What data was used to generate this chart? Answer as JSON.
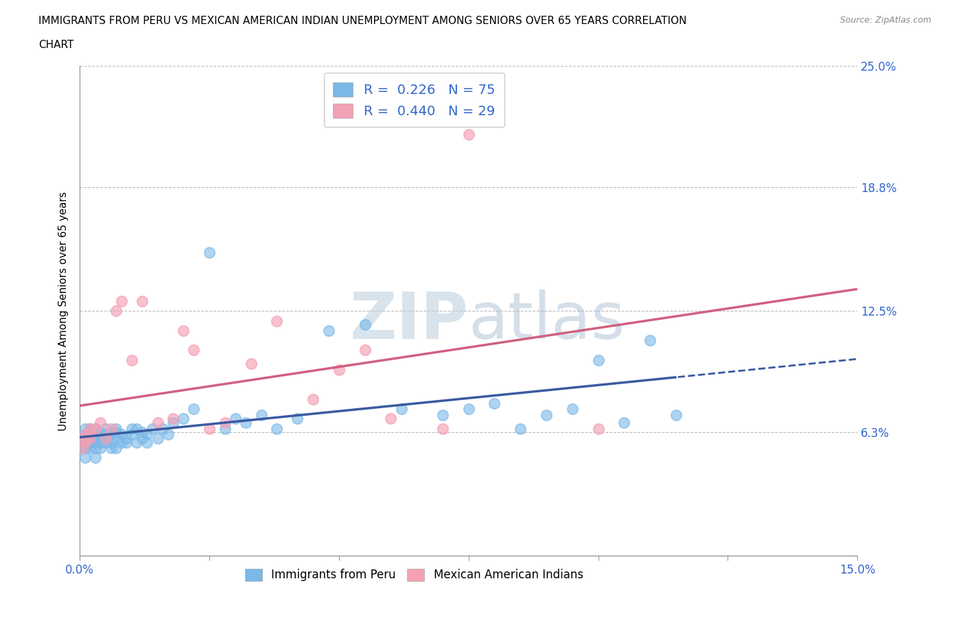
{
  "title_line1": "IMMIGRANTS FROM PERU VS MEXICAN AMERICAN INDIAN UNEMPLOYMENT AMONG SENIORS OVER 65 YEARS CORRELATION",
  "title_line2": "CHART",
  "source": "Source: ZipAtlas.com",
  "ylabel": "Unemployment Among Seniors over 65 years",
  "xlim": [
    0.0,
    0.15
  ],
  "ylim": [
    0.0,
    0.25
  ],
  "ytick_vals": [
    0.0,
    0.063,
    0.125,
    0.188,
    0.25
  ],
  "ytick_labels": [
    "",
    "6.3%",
    "12.5%",
    "18.8%",
    "25.0%"
  ],
  "hline_vals": [
    0.063,
    0.125,
    0.188,
    0.25
  ],
  "blue_color": "#7ab8e8",
  "pink_color": "#f4a0b5",
  "blue_line_color": "#3a5ba0",
  "pink_line_color": "#d06080",
  "label_color": "#3366cc",
  "watermark_color": "#c8d8ee",
  "legend_label1": "Immigrants from Peru",
  "legend_label2": "Mexican American Indians",
  "peru_R": 0.226,
  "peru_N": 75,
  "mex_R": 0.44,
  "mex_N": 29,
  "peru_x": [
    0.0005,
    0.0005,
    0.001,
    0.001,
    0.001,
    0.001,
    0.001,
    0.001,
    0.0015,
    0.0015,
    0.002,
    0.002,
    0.002,
    0.002,
    0.002,
    0.0025,
    0.003,
    0.003,
    0.003,
    0.003,
    0.003,
    0.004,
    0.004,
    0.004,
    0.004,
    0.005,
    0.005,
    0.005,
    0.005,
    0.006,
    0.006,
    0.006,
    0.007,
    0.007,
    0.007,
    0.007,
    0.008,
    0.008,
    0.009,
    0.009,
    0.01,
    0.01,
    0.011,
    0.011,
    0.012,
    0.012,
    0.013,
    0.013,
    0.014,
    0.015,
    0.016,
    0.017,
    0.018,
    0.02,
    0.022,
    0.025,
    0.028,
    0.03,
    0.032,
    0.035,
    0.038,
    0.042,
    0.048,
    0.055,
    0.062,
    0.07,
    0.075,
    0.08,
    0.085,
    0.09,
    0.095,
    0.1,
    0.105,
    0.11,
    0.115
  ],
  "peru_y": [
    0.055,
    0.06,
    0.058,
    0.062,
    0.065,
    0.06,
    0.055,
    0.05,
    0.062,
    0.057,
    0.06,
    0.063,
    0.058,
    0.055,
    0.065,
    0.06,
    0.058,
    0.062,
    0.065,
    0.055,
    0.05,
    0.06,
    0.063,
    0.058,
    0.055,
    0.062,
    0.058,
    0.065,
    0.06,
    0.055,
    0.062,
    0.058,
    0.06,
    0.063,
    0.055,
    0.065,
    0.058,
    0.062,
    0.06,
    0.058,
    0.065,
    0.062,
    0.058,
    0.065,
    0.06,
    0.063,
    0.058,
    0.062,
    0.065,
    0.06,
    0.065,
    0.062,
    0.068,
    0.07,
    0.075,
    0.155,
    0.065,
    0.07,
    0.068,
    0.072,
    0.065,
    0.07,
    0.115,
    0.118,
    0.075,
    0.072,
    0.075,
    0.078,
    0.065,
    0.072,
    0.075,
    0.1,
    0.068,
    0.11,
    0.072
  ],
  "mex_x": [
    0.0005,
    0.001,
    0.001,
    0.001,
    0.002,
    0.002,
    0.003,
    0.004,
    0.005,
    0.006,
    0.007,
    0.008,
    0.01,
    0.012,
    0.015,
    0.018,
    0.02,
    0.022,
    0.025,
    0.028,
    0.033,
    0.038,
    0.045,
    0.05,
    0.055,
    0.06,
    0.07,
    0.075,
    0.1
  ],
  "mex_y": [
    0.055,
    0.058,
    0.062,
    0.06,
    0.06,
    0.065,
    0.065,
    0.068,
    0.06,
    0.065,
    0.125,
    0.13,
    0.1,
    0.13,
    0.068,
    0.07,
    0.115,
    0.105,
    0.065,
    0.068,
    0.098,
    0.12,
    0.08,
    0.095,
    0.105,
    0.07,
    0.065,
    0.215,
    0.065
  ]
}
